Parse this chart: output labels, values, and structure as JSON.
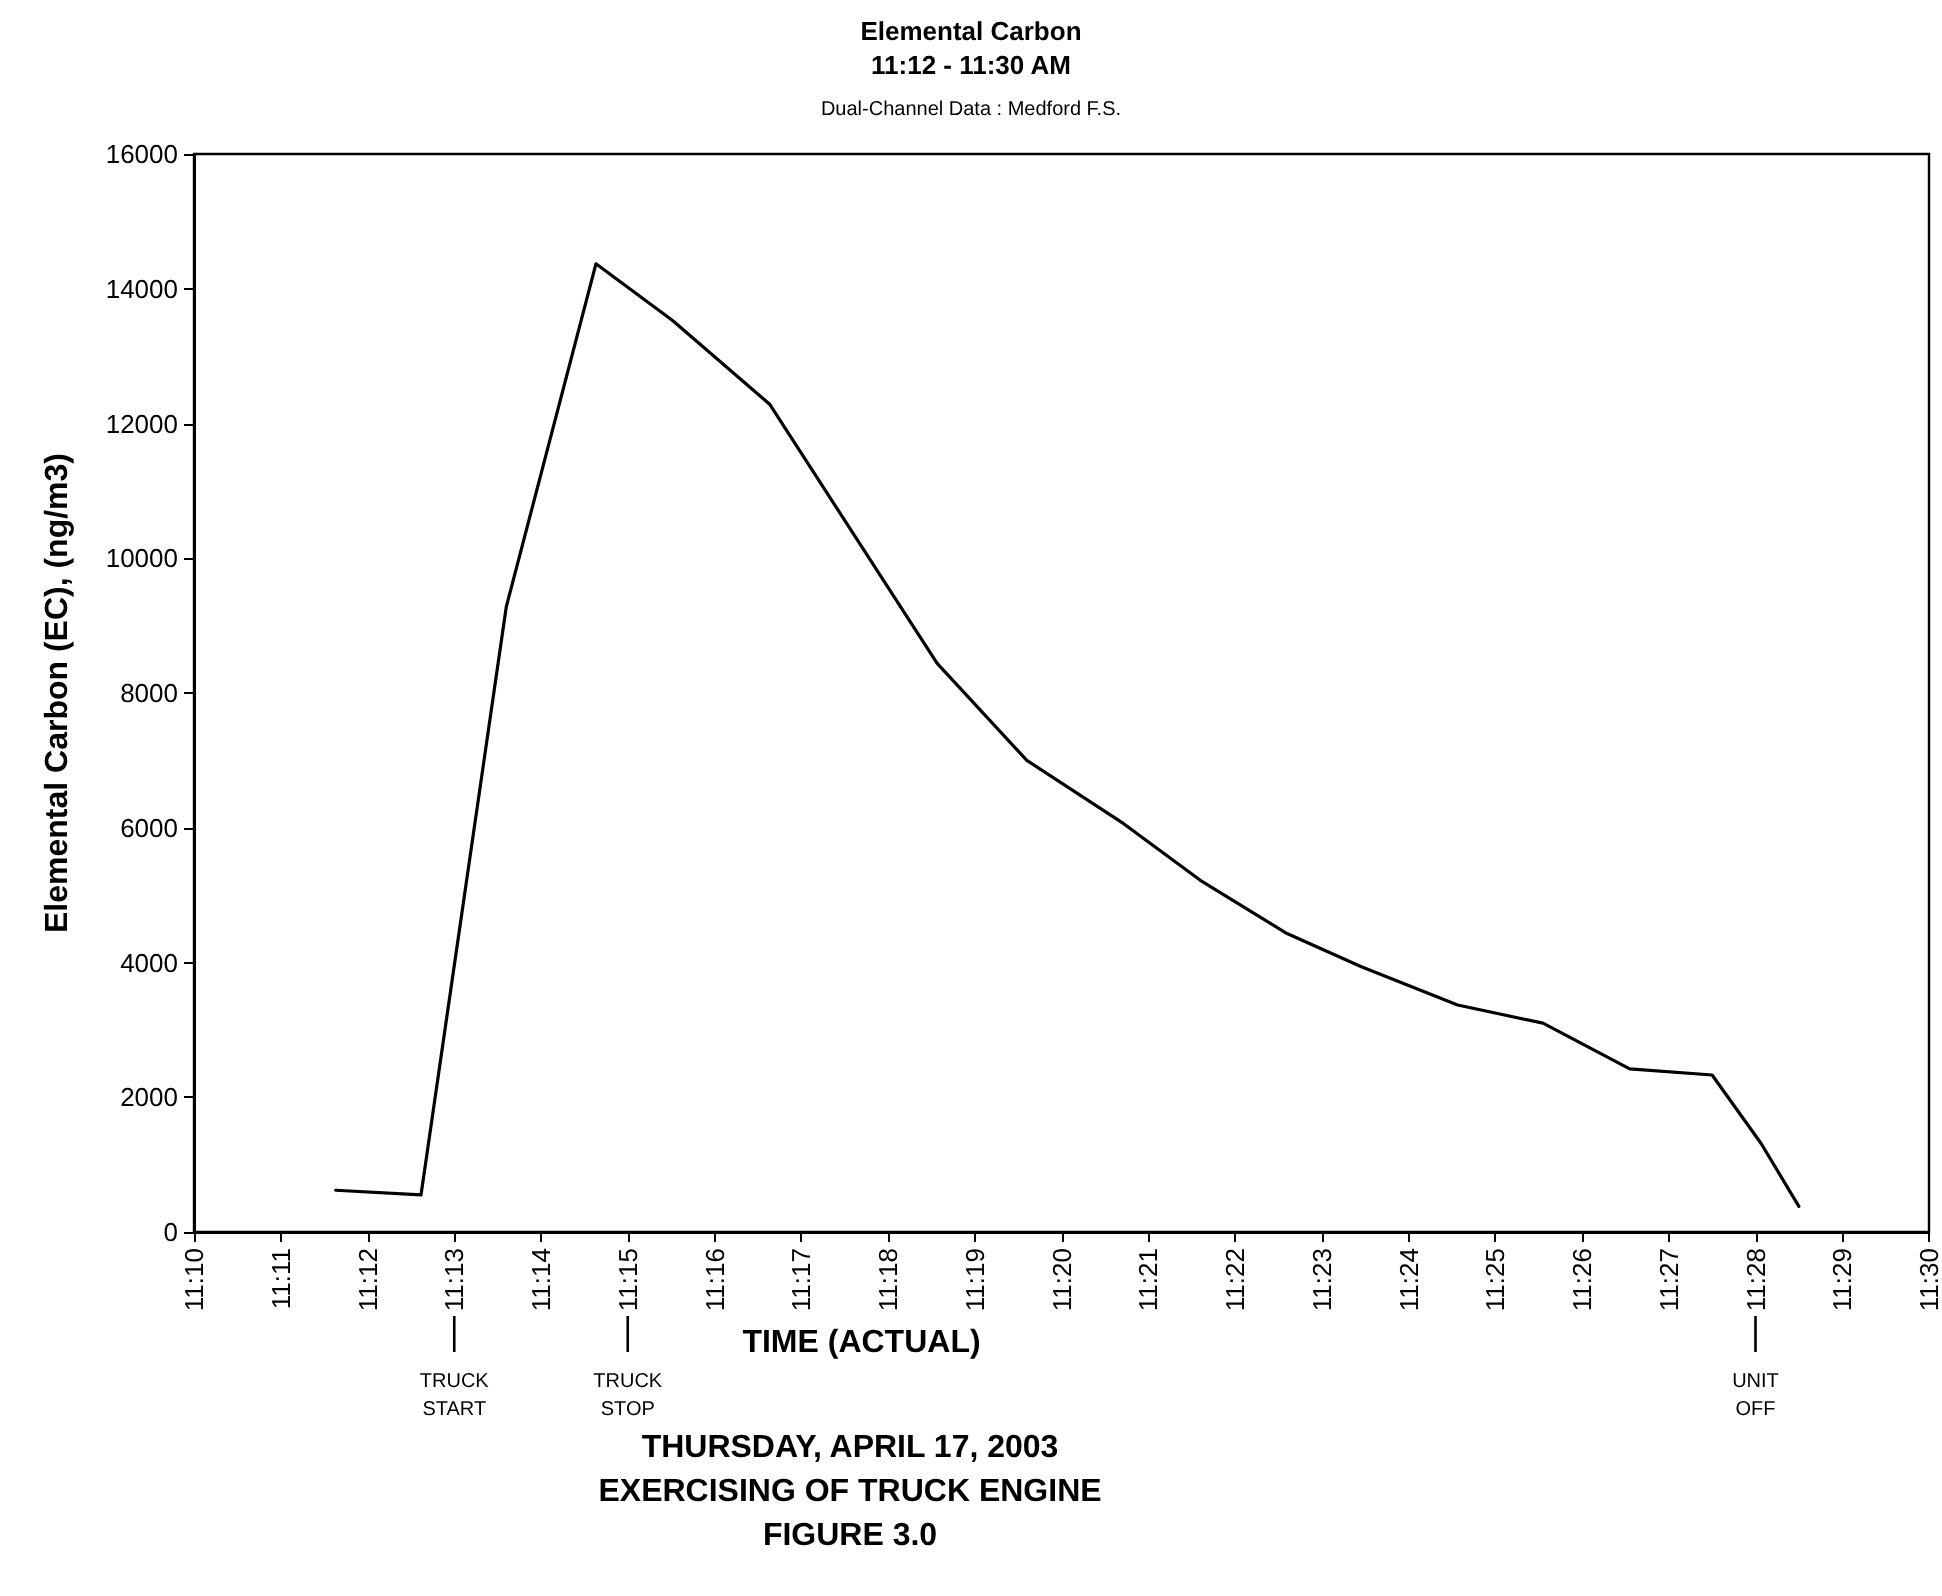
{
  "chart_data": {
    "type": "line",
    "title": "Elemental Carbon",
    "subtitle": "11:12 - 11:30 AM",
    "xlabel": "TIME (ACTUAL)",
    "ylabel": "Elemental Carbon (EC), (ng/m3)",
    "annotations": [
      "Dual-Channel Data : Medford F.S.",
      "THURSDAY, APRIL 17, 2003",
      "EXERCISING OF TRUCK ENGINE",
      "FIGURE 3.0"
    ],
    "x": [
      "2003-04-17T11:11:38",
      "2003-04-17T11:12:37",
      "2003-04-17T11:13:36",
      "2003-04-17T11:14:38",
      "2003-04-17T11:15:31",
      "2003-04-17T11:16:38",
      "2003-04-17T11:18:34",
      "2003-04-17T11:19:36",
      "2003-04-17T11:20:43",
      "2003-04-17T11:21:36",
      "2003-04-17T11:22:36",
      "2003-04-17T11:23:27",
      "2003-04-17T11:24:34",
      "2003-04-17T11:25:33",
      "2003-04-17T11:26:33",
      "2003-04-17T11:27:30",
      "2003-04-17T11:28:04",
      "2003-04-17T11:28:30"
    ],
    "series": [
      {
        "color": "#000000",
        "values": [
          620,
          550,
          9280,
          14370,
          13530,
          12290,
          8440,
          7000,
          6060,
          5220,
          4430,
          3940,
          3370,
          3100,
          2420,
          2330,
          1310,
          380
        ]
      }
    ],
    "xlim": [
      "2003-04-17T11:10",
      "2003-04-17T11:30"
    ],
    "xticks": [
      {
        "value": "2003-04-17T11:10",
        "label": "11:10"
      },
      {
        "value": "2003-04-17T11:11",
        "label": "11:11"
      },
      {
        "value": "2003-04-17T11:12",
        "label": "11:12"
      },
      {
        "value": "2003-04-17T11:13",
        "label": "11:13"
      },
      {
        "value": "2003-04-17T11:14",
        "label": "11:14"
      },
      {
        "value": "2003-04-17T11:15",
        "label": "11:15"
      },
      {
        "value": "2003-04-17T11:16",
        "label": "11:16"
      },
      {
        "value": "2003-04-17T11:17",
        "label": "11:17"
      },
      {
        "value": "2003-04-17T11:18",
        "label": "11:18"
      },
      {
        "value": "2003-04-17T11:19",
        "label": "11:19"
      },
      {
        "value": "2003-04-17T11:20",
        "label": "11:20"
      },
      {
        "value": "2003-04-17T11:21",
        "label": "11:21"
      },
      {
        "value": "2003-04-17T11:22",
        "label": "11:22"
      },
      {
        "value": "2003-04-17T11:23",
        "label": "11:23"
      },
      {
        "value": "2003-04-17T11:24",
        "label": "11:24"
      },
      {
        "value": "2003-04-17T11:25",
        "label": "11:25"
      },
      {
        "value": "2003-04-17T11:26",
        "label": "11:26"
      },
      {
        "value": "2003-04-17T11:27",
        "label": "11:27"
      },
      {
        "value": "2003-04-17T11:28",
        "label": "11:28"
      },
      {
        "value": "2003-04-17T11:29",
        "label": "11:29"
      },
      {
        "value": "2003-04-17T11:30",
        "label": "11:30"
      }
    ],
    "ylim": [
      0,
      16000
    ],
    "yticks": [
      0,
      2000,
      4000,
      6000,
      8000,
      10000,
      12000,
      14000,
      16000
    ],
    "ref_lines": [
      {
        "axis": "x",
        "value": "2003-04-17T11:13",
        "label": "TRUCK START"
      },
      {
        "axis": "x",
        "value": "2003-04-17T11:15",
        "label": "TRUCK STOP"
      },
      {
        "axis": "x",
        "value": "2003-04-17T11:28",
        "label": "UNIT OFF"
      }
    ],
    "grid": false,
    "marker": "none",
    "line_style": "solid"
  }
}
